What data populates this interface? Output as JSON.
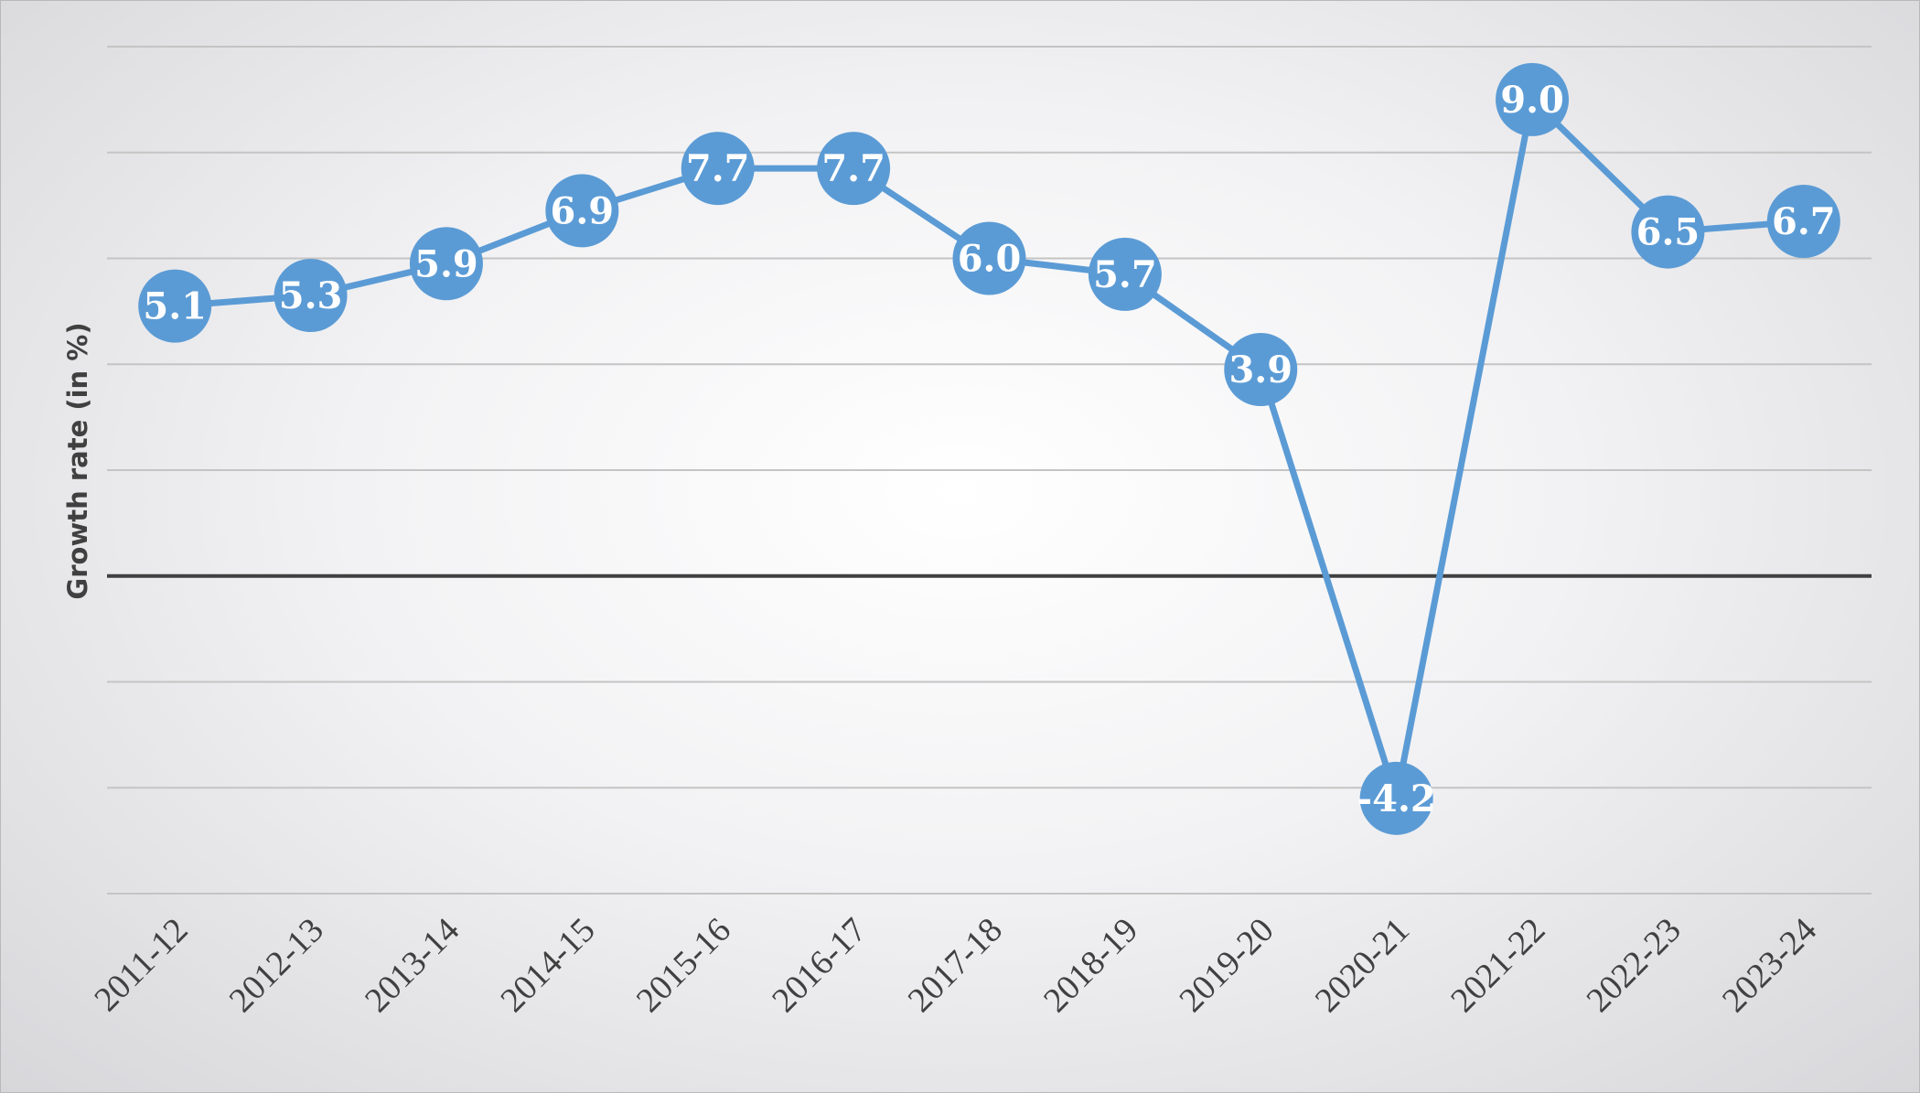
{
  "chart_data": {
    "type": "line",
    "title": "",
    "xlabel": "",
    "ylabel": "Growth rate (in %)",
    "categories": [
      "2011-12",
      "2012-13",
      "2013-14",
      "2014-15",
      "2015-16",
      "2016-17",
      "2017-18",
      "2018-19",
      "2019-20",
      "2020-21",
      "2021-22",
      "2022-23",
      "2023-24"
    ],
    "series": [
      {
        "values": [
          5.1,
          5.3,
          5.9,
          6.9,
          7.7,
          7.7,
          6.0,
          5.7,
          3.9,
          -4.2,
          9.0,
          6.5,
          6.7
        ]
      }
    ],
    "value_labels": [
      "5.1",
      "5.3",
      "5.9",
      "6.9",
      "7.7",
      "7.7",
      "6.0",
      "5.7",
      "3.9",
      "-4.2",
      "9.0",
      "6.5",
      "6.7"
    ],
    "ylim": [
      -6,
      10
    ],
    "ytick_step": 2,
    "grid": true,
    "show_y_tick_labels": false,
    "legend": "none",
    "colors": {
      "series": "#5b9bd5",
      "zero_line": "#404040",
      "grid": "#c4c4c4"
    }
  }
}
